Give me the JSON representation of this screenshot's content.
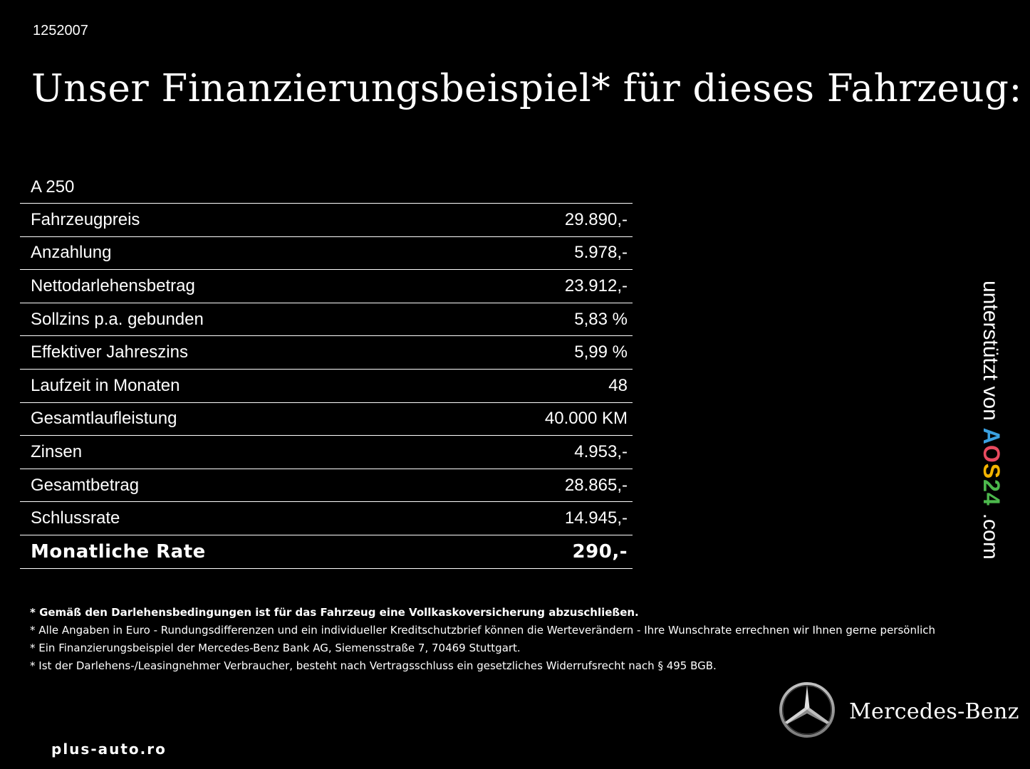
{
  "header": {
    "ref_id": "1252007",
    "title": "Unser Finanzierungsbeispiel* für dieses Fahrzeug:"
  },
  "table": {
    "model": "A 250",
    "rows": [
      {
        "label": "Fahrzeugpreis",
        "value": "29.890,-"
      },
      {
        "label": "Anzahlung",
        "value": "5.978,-"
      },
      {
        "label": "Nettodarlehensbetrag",
        "value": "23.912,-"
      },
      {
        "label": "Sollzins p.a. gebunden",
        "value": "5,83 %"
      },
      {
        "label": "Effektiver Jahreszins",
        "value": "5,99 %"
      },
      {
        "label": "Laufzeit in Monaten",
        "value": "48"
      },
      {
        "label": "Gesamtlaufleistung",
        "value": "40.000 KM"
      },
      {
        "label": "Zinsen",
        "value": "4.953,-"
      },
      {
        "label": "Gesamtbetrag",
        "value": "28.865,-"
      },
      {
        "label": "Schlussrate",
        "value": "14.945,-"
      }
    ],
    "total": {
      "label": "Monatliche Rate",
      "value": "290,-"
    }
  },
  "footnotes": [
    "* Gemäß den Darlehensbedingungen ist für das Fahrzeug eine Vollkaskoversicherung abzuschließen.",
    "* Alle Angaben in Euro - Rundungsdifferenzen und ein individueller Kreditschutzbrief können die Werteverändern - Ihre Wunschrate errechnen wir Ihnen gerne persönlich",
    "* Ein Finanzierungsbeispiel der Mercedes-Benz Bank AG, Siemensstraße 7, 70469 Stuttgart.",
    "* Ist der Darlehens-/Leasingnehmer Verbraucher, besteht nach Vertragsschluss ein gesetzliches Widerrufsrecht nach § 495 BGB."
  ],
  "sponsor": {
    "prefix": "unterstützt von",
    "logo_letters": [
      "A",
      "O",
      "S",
      "2",
      "4"
    ],
    "suffix": ".com",
    "logo_colors": [
      "#3aa0e0",
      "#e84a5f",
      "#f5b400",
      "#4cb84c"
    ]
  },
  "brand": {
    "name": "Mercedes-Benz",
    "icon": "mercedes-star-icon"
  },
  "watermark": "plus-auto.ro"
}
